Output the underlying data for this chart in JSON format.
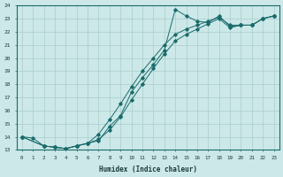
{
  "xlabel": "Humidex (Indice chaleur)",
  "bg_color": "#cce8e8",
  "line_color": "#1a6b6b",
  "grid_color": "#aacccc",
  "xlim": [
    -0.5,
    23.5
  ],
  "ylim": [
    13,
    24
  ],
  "xticks": [
    0,
    1,
    2,
    3,
    4,
    5,
    6,
    7,
    8,
    9,
    10,
    11,
    12,
    13,
    14,
    15,
    16,
    17,
    18,
    19,
    20,
    21,
    22,
    23
  ],
  "yticks": [
    13,
    14,
    15,
    16,
    17,
    18,
    19,
    20,
    21,
    22,
    23,
    24
  ],
  "line1_x": [
    0,
    1,
    2,
    3,
    4,
    5,
    6,
    7,
    8,
    9,
    10,
    11,
    12,
    13,
    14,
    15,
    16,
    17,
    18,
    19,
    20,
    21,
    22,
    23
  ],
  "line1_y": [
    14.0,
    13.9,
    13.3,
    13.2,
    13.1,
    13.3,
    13.5,
    13.7,
    14.8,
    15.6,
    17.4,
    18.5,
    19.5,
    20.6,
    23.7,
    23.2,
    22.8,
    22.7,
    23.2,
    22.4,
    22.5,
    22.5,
    23.0,
    23.2
  ],
  "line2_x": [
    0,
    2,
    3,
    4,
    5,
    6,
    7,
    8,
    9,
    10,
    11,
    12,
    13,
    14,
    15,
    16,
    17,
    18,
    19,
    20,
    21,
    22,
    23
  ],
  "line2_y": [
    14.0,
    13.3,
    13.2,
    13.1,
    13.3,
    13.5,
    14.2,
    15.3,
    16.5,
    17.8,
    19.0,
    20.0,
    21.0,
    21.8,
    22.2,
    22.5,
    22.8,
    23.1,
    22.5,
    22.5,
    22.5,
    23.0,
    23.2
  ],
  "line3_x": [
    0,
    2,
    3,
    4,
    5,
    6,
    7,
    8,
    9,
    10,
    11,
    12,
    13,
    14,
    15,
    16,
    17,
    18,
    19,
    20,
    21,
    22,
    23
  ],
  "line3_y": [
    14.0,
    13.3,
    13.2,
    13.1,
    13.3,
    13.5,
    13.8,
    14.5,
    15.5,
    16.8,
    18.0,
    19.2,
    20.3,
    21.3,
    21.8,
    22.2,
    22.6,
    23.0,
    22.3,
    22.5,
    22.5,
    23.0,
    23.2
  ]
}
